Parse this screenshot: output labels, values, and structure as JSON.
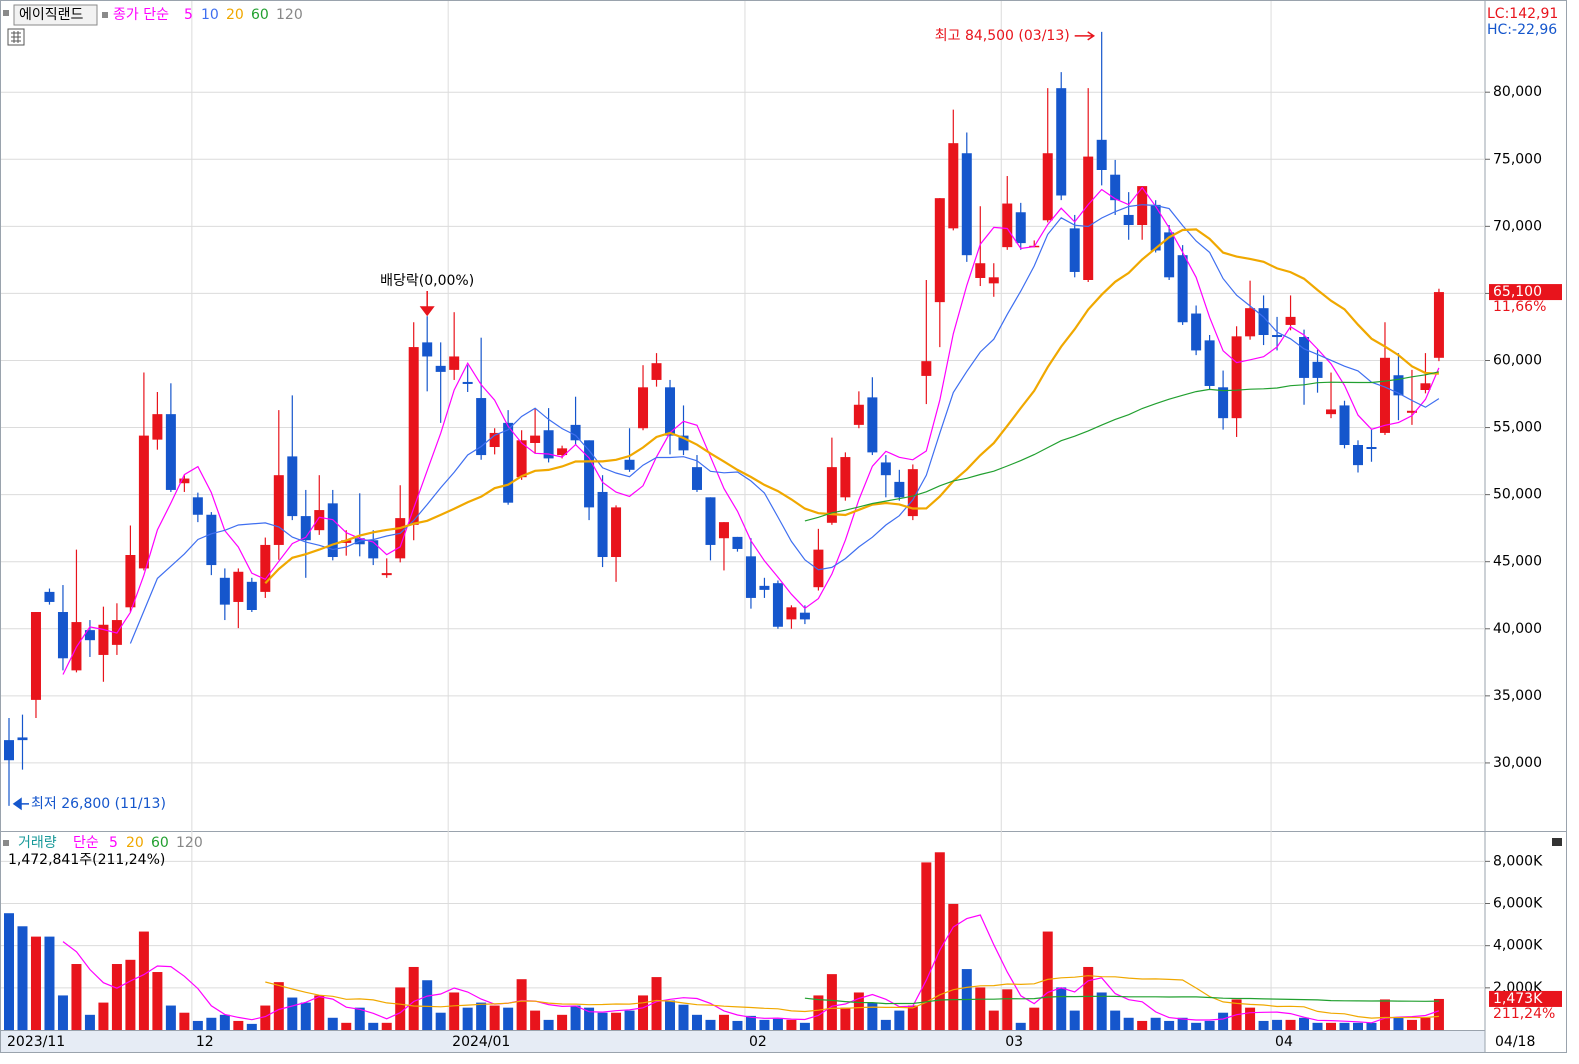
{
  "header": {
    "stock_name": "에이직랜드",
    "lc": "LC:142,91",
    "hc": "HC:-22,96"
  },
  "chart_data": [
    {
      "type": "candlestick",
      "legend_label": "종가 단순",
      "legend_color": "#ff00ff",
      "ma": [
        {
          "name": "5",
          "color": "#ff00ff"
        },
        {
          "name": "10",
          "color": "#3f6ff0"
        },
        {
          "name": "20",
          "color": "#f0a800"
        },
        {
          "name": "60",
          "color": "#22a030"
        },
        {
          "name": "120",
          "color": "#888888"
        }
      ],
      "categories": [
        "2023/11",
        null,
        null,
        null,
        null,
        null,
        null,
        null,
        null,
        null,
        null,
        null,
        null,
        null,
        "12",
        null,
        null,
        null,
        null,
        null,
        null,
        null,
        null,
        null,
        null,
        null,
        null,
        null,
        null,
        null,
        null,
        null,
        null,
        "2024/01",
        null,
        null,
        null,
        null,
        null,
        null,
        null,
        null,
        null,
        null,
        null,
        null,
        null,
        null,
        null,
        null,
        null,
        null,
        null,
        null,
        null,
        "02",
        null,
        null,
        null,
        null,
        null,
        null,
        null,
        null,
        null,
        null,
        null,
        null,
        null,
        null,
        null,
        null,
        null,
        null,
        "03",
        null,
        null,
        null,
        null,
        null,
        null,
        null,
        null,
        null,
        null,
        null,
        null,
        null,
        null,
        null,
        null,
        null,
        null,
        null,
        "04",
        null,
        null,
        null,
        null,
        null,
        null,
        null,
        null,
        null,
        null,
        null,
        null
      ],
      "end_label": "04/18",
      "open": [
        31700,
        31900,
        34700,
        42750,
        41250,
        36900,
        39900,
        38050,
        38800,
        41600,
        44500,
        54100,
        56000,
        50850,
        49800,
        48500,
        43800,
        42000,
        43500,
        42750,
        46250,
        52850,
        48400,
        47350,
        49350,
        46400,
        46750,
        46600,
        44000,
        45250,
        47750,
        61350,
        59600,
        59300,
        58400,
        57200,
        53550,
        55350,
        51300,
        53850,
        54800,
        52950,
        55200,
        54050,
        50200,
        45350,
        52600,
        54950,
        58550,
        58000,
        54400,
        52050,
        49800,
        46750,
        46850,
        45400,
        43200,
        43400,
        40700,
        41200,
        43100,
        47900,
        49800,
        55200,
        57250,
        52400,
        50950,
        48400,
        58850,
        64350,
        69850,
        75450,
        66150,
        65750,
        68450,
        71050,
        68500,
        70450,
        80300,
        69850,
        66000,
        76450,
        73850,
        70850,
        70100,
        71600,
        69550,
        67850,
        63500,
        61500,
        58000,
        55700,
        61800,
        63900,
        61900,
        62650,
        61750,
        59900,
        56000,
        56650,
        53700,
        53550,
        54600,
        58900,
        56100,
        57800,
        60200
      ],
      "high": [
        33350,
        33600,
        41250,
        43000,
        43260,
        45900,
        40650,
        41650,
        41900,
        47700,
        59100,
        57650,
        58300,
        51450,
        50150,
        48700,
        44500,
        44500,
        43800,
        46800,
        56300,
        57400,
        50350,
        51450,
        50350,
        47350,
        50100,
        47350,
        45250,
        50700,
        62850,
        63300,
        61350,
        63600,
        59650,
        61700,
        54950,
        56300,
        54800,
        56450,
        56450,
        53650,
        57300,
        54050,
        51450,
        49200,
        54950,
        59650,
        60550,
        58550,
        56650,
        52950,
        49800,
        47950,
        46850,
        46750,
        43800,
        43600,
        41750,
        41750,
        47450,
        54250,
        53150,
        57700,
        58750,
        52950,
        51850,
        52250,
        66000,
        72100,
        78700,
        77000,
        71500,
        67250,
        73750,
        71750,
        68950,
        80300,
        81500,
        70850,
        80300,
        84500,
        74950,
        72550,
        73000,
        71950,
        70100,
        68600,
        64100,
        61900,
        59250,
        62550,
        65950,
        64850,
        63250,
        64850,
        62300,
        60800,
        59100,
        57000,
        54050,
        54850,
        62850,
        60550,
        59300,
        60550,
        65350
      ],
      "low": [
        26800,
        29500,
        33350,
        41800,
        36900,
        36750,
        37900,
        36050,
        38050,
        41250,
        44350,
        53350,
        50200,
        50200,
        47950,
        44000,
        40650,
        40050,
        41250,
        42300,
        45150,
        48100,
        43800,
        47000,
        45100,
        45450,
        45400,
        44750,
        43800,
        44950,
        46600,
        57700,
        55350,
        58550,
        57650,
        52600,
        53000,
        49250,
        51100,
        53050,
        52400,
        52700,
        53700,
        48100,
        44600,
        43500,
        51700,
        54800,
        58050,
        53000,
        52950,
        50200,
        45100,
        44350,
        45750,
        41500,
        42300,
        40000,
        40000,
        40350,
        42850,
        47750,
        49550,
        54950,
        52950,
        49800,
        49550,
        48100,
        56750,
        61000,
        69700,
        67350,
        65550,
        64750,
        68250,
        68250,
        68450,
        70300,
        71950,
        66200,
        65850,
        73050,
        70850,
        69000,
        69000,
        68050,
        66000,
        62650,
        60400,
        57800,
        54850,
        54300,
        61550,
        61150,
        60750,
        62250,
        56700,
        57600,
        55700,
        53450,
        51650,
        52450,
        54450,
        55550,
        55200,
        57550,
        59950
      ],
      "close": [
        30200,
        31700,
        41250,
        42000,
        37800,
        40500,
        39150,
        40300,
        40650,
        45500,
        54400,
        56000,
        50350,
        51200,
        48500,
        44750,
        41800,
        44250,
        41400,
        46250,
        51450,
        48400,
        46600,
        48850,
        45350,
        46600,
        46300,
        45250,
        44150,
        48250,
        61000,
        60300,
        59150,
        60300,
        58250,
        52950,
        54600,
        49400,
        54050,
        54400,
        52700,
        53450,
        54050,
        49050,
        45350,
        49050,
        51850,
        58000,
        59800,
        54400,
        53300,
        50350,
        46250,
        47950,
        45950,
        42300,
        42900,
        40150,
        41600,
        40700,
        45900,
        52050,
        52800,
        56700,
        53150,
        51450,
        49800,
        51900,
        59950,
        72100,
        76200,
        67850,
        67250,
        66200,
        71700,
        68750,
        68550,
        75450,
        72300,
        66600,
        75200,
        74200,
        71950,
        70100,
        73000,
        68200,
        66200,
        62850,
        60750,
        58100,
        55700,
        61800,
        63900,
        61900,
        61750,
        63250,
        58700,
        58700,
        56350,
        53700,
        52200,
        53400,
        60200,
        57400,
        56250,
        58300,
        65100
      ],
      "up_color": "#e8141c",
      "down_color": "#1556cc",
      "ylim": [
        25000,
        86500
      ],
      "yticks": [
        {
          "value": 30000,
          "label": "30,000"
        },
        {
          "value": 35000,
          "label": "35,000"
        },
        {
          "value": 40000,
          "label": "40,000"
        },
        {
          "value": 45000,
          "label": "45,000"
        },
        {
          "value": 50000,
          "label": "50,000"
        },
        {
          "value": 55000,
          "label": "55,000"
        },
        {
          "value": 60000,
          "label": "60,000"
        },
        {
          "value": 65000,
          "label": "65,000"
        },
        {
          "value": 70000,
          "label": "70,000"
        },
        {
          "value": 75000,
          "label": "75,000"
        },
        {
          "value": 80000,
          "label": "80,000"
        }
      ],
      "grid": true,
      "annotations": {
        "high": "최고 84,500 (03/13)",
        "low": "최저 26,800 (11/13)",
        "dividend": "배당락(0,00%)"
      },
      "last_label": "65,100",
      "change_label": "11,66%"
    },
    {
      "type": "bar",
      "legend_label": "거래량",
      "legend_color": "#1a9a9a",
      "ma_label": "단순",
      "ma": [
        {
          "name": "5",
          "color": "#ff00ff"
        },
        {
          "name": "20",
          "color": "#f0a800"
        },
        {
          "name": "60",
          "color": "#22a030"
        },
        {
          "name": "120",
          "color": "#888888"
        }
      ],
      "info": "1,472,841주(211,24%)",
      "values": [
        5540,
        4920,
        4430,
        4430,
        1640,
        3130,
        720,
        1300,
        3130,
        3330,
        4670,
        2750,
        1160,
        820,
        430,
        580,
        720,
        430,
        290,
        1160,
        2270,
        1540,
        1300,
        1640,
        580,
        340,
        1060,
        340,
        340,
        2020,
        2990,
        2360,
        820,
        1780,
        1060,
        1300,
        1160,
        1060,
        2410,
        920,
        480,
        720,
        1160,
        1060,
        820,
        820,
        920,
        1640,
        2510,
        1400,
        1200,
        720,
        480,
        720,
        430,
        670,
        480,
        530,
        480,
        340,
        1640,
        2650,
        1060,
        1780,
        1300,
        480,
        920,
        1160,
        7950,
        8430,
        5980,
        2890,
        2020,
        920,
        1930,
        340,
        1060,
        4670,
        2020,
        920,
        2990,
        1780,
        920,
        580,
        430,
        580,
        430,
        580,
        340,
        430,
        820,
        1450,
        1060,
        430,
        480,
        480,
        580,
        340,
        340,
        340,
        340,
        340,
        1450,
        580,
        480,
        580,
        1473
      ],
      "ylim": [
        0,
        9250
      ],
      "yticks": [
        {
          "value": 2000,
          "label": "2,000K"
        },
        {
          "value": 4000,
          "label": "4,000K"
        },
        {
          "value": 6000,
          "label": "6,000K"
        },
        {
          "value": 8000,
          "label": "8,000K"
        }
      ],
      "grid": true,
      "last_label": "1,473K",
      "change_label": "211,24%"
    }
  ]
}
